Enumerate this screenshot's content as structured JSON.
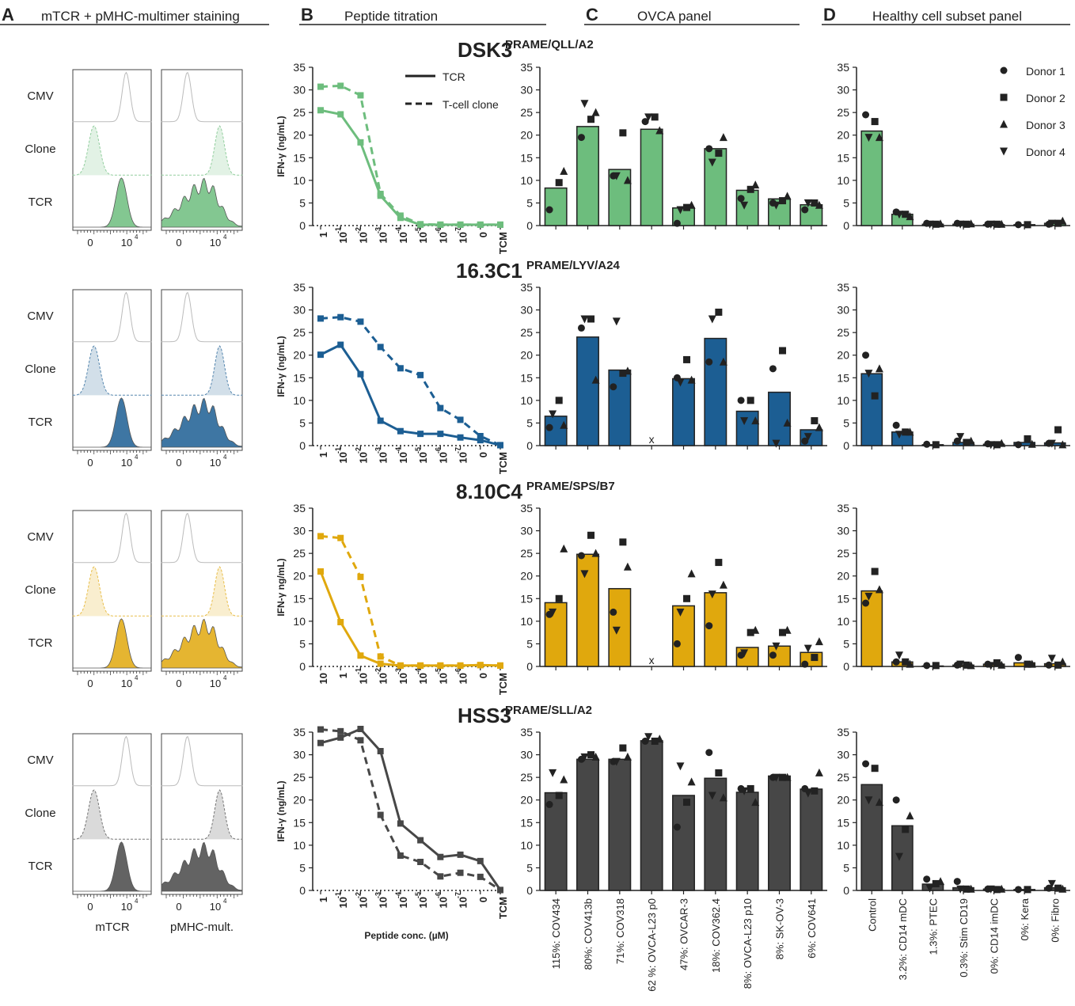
{
  "panels": {
    "A": {
      "letter": "A",
      "title": "mTCR + pMHC-multimer staining"
    },
    "B": {
      "letter": "B",
      "title": "Peptide titration"
    },
    "C": {
      "letter": "C",
      "title": "OVCA panel"
    },
    "D": {
      "letter": "D",
      "title": "Healthy cell subset panel"
    }
  },
  "histogram": {
    "row_labels": [
      "CMV",
      "Clone",
      "TCR"
    ],
    "axis_ticks": [
      "0",
      "10"
    ],
    "axis_exp": "4",
    "xlabels": [
      "mTCR",
      "pMHC-mult."
    ]
  },
  "legend_lines": {
    "solid": "TCR",
    "dashed": "T-cell clone"
  },
  "legend_donors": [
    "Donor 1",
    "Donor 2",
    "Donor 3",
    "Donor 4"
  ],
  "chart_data": [
    {
      "type": "line",
      "name": "DSK3",
      "superscript": "PRAME/QLL/A2",
      "color": "#6dbd7d",
      "title": "DSK3 PRAME/QLL/A2",
      "ylabel": "IFN-γ (ng/mL)",
      "ylim": [
        0,
        35
      ],
      "yticks": [
        0,
        5,
        10,
        15,
        20,
        25,
        30,
        35
      ],
      "xticks": [
        "1",
        "10^-1",
        "10^-2",
        "10^-3",
        "10^-4",
        "10^-5",
        "10^-6",
        "10^-7",
        "0",
        "TCM"
      ],
      "series": [
        {
          "name": "TCR",
          "style": "solid",
          "values": [
            25.5,
            24.6,
            18.4,
            6.6,
            1.7,
            0.2,
            0.2,
            0.2,
            0.2,
            0.2
          ]
        },
        {
          "name": "T-cell clone",
          "style": "dashed",
          "values": [
            30.7,
            30.9,
            28.8,
            7.0,
            2.2,
            0.3,
            0.2,
            0.2,
            0.2,
            0.2
          ]
        }
      ]
    },
    {
      "type": "line",
      "name": "16.3C1",
      "superscript": "PRAME/LYV/A24",
      "color": "#1c5e93",
      "title": "16.3C1 PRAME/LYV/A24",
      "ylabel": "IFN-γ (ng/mL)",
      "ylim": [
        0,
        35
      ],
      "yticks": [
        0,
        5,
        10,
        15,
        20,
        25,
        30,
        35
      ],
      "xticks": [
        "1",
        "10^-1",
        "10^-2",
        "10^-3",
        "10^-4",
        "10^-5",
        "10^-6",
        "10^-7",
        "0",
        "TCM"
      ],
      "series": [
        {
          "name": "TCR",
          "style": "solid",
          "values": [
            20.1,
            22.3,
            15.8,
            5.5,
            3.2,
            2.6,
            2.6,
            1.8,
            1.2,
            0.1
          ]
        },
        {
          "name": "T-cell clone",
          "style": "dashed",
          "values": [
            28.1,
            28.4,
            27.4,
            21.8,
            17.1,
            15.6,
            8.3,
            5.7,
            2.1,
            0.1
          ]
        }
      ]
    },
    {
      "type": "line",
      "name": "8.10C4",
      "superscript": "PRAME/SPS/B7",
      "color": "#e0a80d",
      "title": "8.10C4 PRAME/SPS/B7",
      "ylabel": "IFN-γ  ng/mL)",
      "ylim": [
        0,
        35
      ],
      "yticks": [
        0,
        5,
        10,
        15,
        20,
        25,
        30,
        35
      ],
      "xticks": [
        "10",
        "1",
        "10^-1",
        "10^-2",
        "10^-3",
        "10^-4",
        "10^-5",
        "10^-6",
        "0",
        "TCM"
      ],
      "series": [
        {
          "name": "TCR",
          "style": "solid",
          "values": [
            21.0,
            9.8,
            2.4,
            0.6,
            0.2,
            0.2,
            0.2,
            0.2,
            0.3,
            0.2
          ]
        },
        {
          "name": "T-cell clone",
          "style": "dashed",
          "values": [
            28.8,
            28.4,
            19.8,
            2.2,
            0.2,
            0.2,
            0.2,
            0.2,
            0.3,
            0.2
          ]
        }
      ]
    },
    {
      "type": "line",
      "name": "HSS3",
      "superscript": "PRAME/SLL/A2",
      "color": "#474747",
      "title": "HSS3 PRAME/SLL/A2",
      "ylabel": "IFN-γ (ng/mL)",
      "xlabel": "Peptide conc. (µM)",
      "ylim": [
        0,
        35
      ],
      "yticks": [
        0,
        5,
        10,
        15,
        20,
        25,
        30,
        35
      ],
      "xticks": [
        "1",
        "10^-1",
        "10^-2",
        "10^-3",
        "10^-4",
        "10^-5",
        "10^-6",
        "10^-7",
        "0",
        "TCM"
      ],
      "series": [
        {
          "name": "TCR",
          "style": "solid",
          "values": [
            32.6,
            33.8,
            35.7,
            30.8,
            14.8,
            11.1,
            7.4,
            7.9,
            6.5,
            0.1
          ]
        },
        {
          "name": "T-cell clone",
          "style": "dashed",
          "values": [
            35.6,
            35.2,
            33.2,
            16.7,
            7.7,
            6.3,
            3.1,
            3.9,
            3.0,
            0.1
          ]
        }
      ]
    },
    {
      "type": "bar",
      "name": "OVCA DSK3",
      "color": "#6dbd7d",
      "ylim": [
        0,
        35
      ],
      "categories": [
        "115%: COV434",
        "80%: COV413b",
        "71%: COV318",
        "62 %: OVCA-L23 p0",
        "47%: OVCAR-3",
        "18%: COV362.4",
        "8%: OVCA-L23 p10",
        "8%: SK-OV-3",
        "6%: COV641"
      ],
      "values": [
        8.3,
        21.9,
        12.4,
        21.3,
        3.9,
        17.0,
        7.8,
        5.9,
        4.6
      ],
      "not_tested": [],
      "donors": [
        [
          3.5,
          9.5,
          12.0,
          null
        ],
        [
          19.5,
          23.5,
          25.0,
          27.0
        ],
        [
          11.0,
          20.5,
          10.0,
          11.0
        ],
        [
          23.0,
          24.0,
          21.0,
          24.0
        ],
        [
          0.5,
          4.0,
          4.5,
          3.5
        ],
        [
          17.0,
          16.0,
          19.5,
          14.0
        ],
        [
          6.0,
          8.0,
          9.0,
          4.5
        ],
        [
          5.0,
          5.5,
          6.5,
          4.5
        ],
        [
          3.5,
          5.0,
          4.5,
          5.0
        ]
      ]
    },
    {
      "type": "bar",
      "name": "OVCA 16.3C1",
      "color": "#1c5e93",
      "ylim": [
        0,
        35
      ],
      "categories": [
        "115%: COV434",
        "80%: COV413b",
        "71%: COV318",
        "62 %: OVCA-L23 p0",
        "47%: OVCAR-3",
        "18%: COV362.4",
        "8%: OVCA-L23 p10",
        "8%: SK-OV-3",
        "6%: COV641"
      ],
      "values": [
        6.5,
        24.0,
        16.7,
        null,
        14.8,
        23.7,
        7.6,
        11.8,
        3.5
      ],
      "not_tested": [
        3
      ],
      "donors": [
        [
          4.0,
          10.0,
          4.5,
          7.0
        ],
        [
          26.0,
          28.0,
          14.5,
          28.0
        ],
        [
          13.0,
          16.0,
          16.5,
          27.5
        ],
        [
          null,
          null,
          null,
          null
        ],
        [
          15.0,
          19.0,
          14.5,
          14.0
        ],
        [
          18.5,
          29.5,
          18.5,
          28.0
        ],
        [
          10.0,
          10.0,
          5.5,
          5.5
        ],
        [
          17.0,
          21.0,
          5.0,
          0.5
        ],
        [
          1.0,
          5.5,
          4.0,
          2.0
        ]
      ]
    },
    {
      "type": "bar",
      "name": "OVCA 8.10C4",
      "color": "#e0a80d",
      "ylim": [
        0,
        35
      ],
      "categories": [
        "115%: COV434",
        "80%: COV413b",
        "71%: COV318",
        "62 %: OVCA-L23 p0",
        "47%: OVCAR-3",
        "18%: COV362.4",
        "8%: OVCA-L23 p10",
        "8%: SK-OV-3",
        "6%: COV641"
      ],
      "values": [
        14.1,
        24.8,
        17.2,
        null,
        13.4,
        16.3,
        4.2,
        4.5,
        3.1
      ],
      "not_tested": [
        3
      ],
      "donors": [
        [
          11.5,
          15.0,
          26.0,
          12.0
        ],
        [
          24.5,
          29.0,
          25.0,
          20.5
        ],
        [
          12.0,
          27.5,
          22.0,
          8.0
        ],
        [
          null,
          null,
          null,
          null
        ],
        [
          5.0,
          15.0,
          20.5,
          12.0
        ],
        [
          9.0,
          23.0,
          18.0,
          16.0
        ],
        [
          2.5,
          7.5,
          8.0,
          3.0
        ],
        [
          2.5,
          7.5,
          8.0,
          4.5
        ],
        [
          0.5,
          2.0,
          5.5,
          4.0
        ]
      ]
    },
    {
      "type": "bar",
      "name": "OVCA HSS3",
      "color": "#474747",
      "ylim": [
        0,
        35
      ],
      "categories": [
        "115%: COV434",
        "80%: COV413b",
        "71%: COV318",
        "62 %: OVCA-L23 p0",
        "47%: OVCAR-3",
        "18%: COV362.4",
        "8%: OVCA-L23 p10",
        "8%: SK-OV-3",
        "6%: COV641"
      ],
      "values": [
        21.6,
        29.0,
        29.0,
        33.1,
        21.0,
        24.8,
        21.7,
        25.3,
        22.4
      ],
      "not_tested": [],
      "donors": [
        [
          19.0,
          21.0,
          24.5,
          26.0
        ],
        [
          29.0,
          30.0,
          29.5,
          29.5
        ],
        [
          28.5,
          31.5,
          29.5,
          28.5
        ],
        [
          33.0,
          33.0,
          33.5,
          34.0
        ],
        [
          14.0,
          19.5,
          24.0,
          27.5
        ],
        [
          30.5,
          26.0,
          20.5,
          21.0
        ],
        [
          22.5,
          22.5,
          19.5,
          22.0
        ],
        [
          25.0,
          25.0,
          25.0,
          25.0
        ],
        [
          22.5,
          22.0,
          26.0,
          21.5
        ]
      ]
    },
    {
      "type": "bar",
      "name": "Healthy DSK3",
      "color": "#6dbd7d",
      "ylim": [
        0,
        35
      ],
      "categories": [
        "Control",
        "3.2%: CD14 mDC",
        "1.3%: PTEC",
        "0.3%: Stim CD19",
        "0%: CD14 imDC",
        "0%: Kera",
        "0%: Fibro"
      ],
      "values": [
        20.9,
        2.5,
        0.3,
        0.3,
        0.2,
        0.2,
        0.5
      ],
      "not_tested": [],
      "donors": [
        [
          24.5,
          23.0,
          19.5,
          19.5
        ],
        [
          3.0,
          2.5,
          2.0,
          2.5
        ],
        [
          0.5,
          0.3,
          0.4,
          0.3
        ],
        [
          0.5,
          0.3,
          0.4,
          0.3
        ],
        [
          0.3,
          0.3,
          0.3,
          0.3
        ],
        [
          0.2,
          0.2,
          null,
          null
        ],
        [
          0.3,
          0.5,
          1.0,
          0.5
        ]
      ]
    },
    {
      "type": "bar",
      "name": "Healthy 16.3C1",
      "color": "#1c5e93",
      "ylim": [
        0,
        35
      ],
      "categories": [
        "Control",
        "3.2%: CD14 mDC",
        "1.3%: PTEC",
        "0.3%: Stim CD19",
        "0%: CD14 imDC",
        "0%: Kera",
        "0%: Fibro"
      ],
      "values": [
        15.9,
        3.0,
        0.2,
        0.7,
        0.3,
        0.7,
        0.6
      ],
      "not_tested": [],
      "donors": [
        [
          20.0,
          11.0,
          17.0,
          16.0
        ],
        [
          4.5,
          3.0,
          3.0,
          2.5
        ],
        [
          0.3,
          0.2,
          null,
          null
        ],
        [
          1.0,
          0.7,
          1.0,
          2.0
        ],
        [
          0.4,
          0.2,
          0.5,
          0.2
        ],
        [
          0.2,
          1.5,
          0.3,
          null
        ],
        [
          0.5,
          3.5,
          0.2,
          0.5
        ]
      ]
    },
    {
      "type": "bar",
      "name": "Healthy 8.10C4",
      "color": "#e0a80d",
      "ylim": [
        0,
        35
      ],
      "categories": [
        "Control",
        "3.2%: CD14 mDC",
        "1.3%: PTEC",
        "0.3%: Stim CD19",
        "0%: CD14 imDC",
        "0%: Kera",
        "0%: Fibro"
      ],
      "values": [
        16.7,
        1.0,
        0.1,
        0.3,
        0.5,
        0.8,
        0.6
      ],
      "not_tested": [],
      "donors": [
        [
          14.0,
          21.0,
          17.0,
          15.5
        ],
        [
          1.0,
          1.0,
          0.5,
          2.5
        ],
        [
          0.2,
          0.2,
          null,
          null
        ],
        [
          0.3,
          0.3,
          0.2,
          0.5
        ],
        [
          0.5,
          0.8,
          0.3,
          0.2
        ],
        [
          2.0,
          0.5,
          0.5,
          null
        ],
        [
          0.3,
          0.3,
          1.0,
          1.8
        ]
      ]
    },
    {
      "type": "bar",
      "name": "Healthy HSS3",
      "color": "#474747",
      "ylim": [
        0,
        35
      ],
      "categories": [
        "Control",
        "3.2%: CD14 mDC",
        "1.3%: PTEC",
        "0.3%: Stim CD19",
        "0%: CD14 imDC",
        "0%: Kera",
        "0%: Fibro"
      ],
      "values": [
        23.4,
        14.3,
        1.4,
        0.6,
        0.3,
        0.2,
        0.6
      ],
      "not_tested": [],
      "donors": [
        [
          28.0,
          27.0,
          19.5,
          20.0
        ],
        [
          20.0,
          13.5,
          16.5,
          7.5
        ],
        [
          2.5,
          1.5,
          2.0,
          0.5
        ],
        [
          2.0,
          0.3,
          0.3,
          0.3
        ],
        [
          0.3,
          0.2,
          0.3,
          0.3
        ],
        [
          0.2,
          0.2,
          null,
          null
        ],
        [
          0.5,
          0.5,
          0.3,
          1.5
        ]
      ]
    }
  ]
}
